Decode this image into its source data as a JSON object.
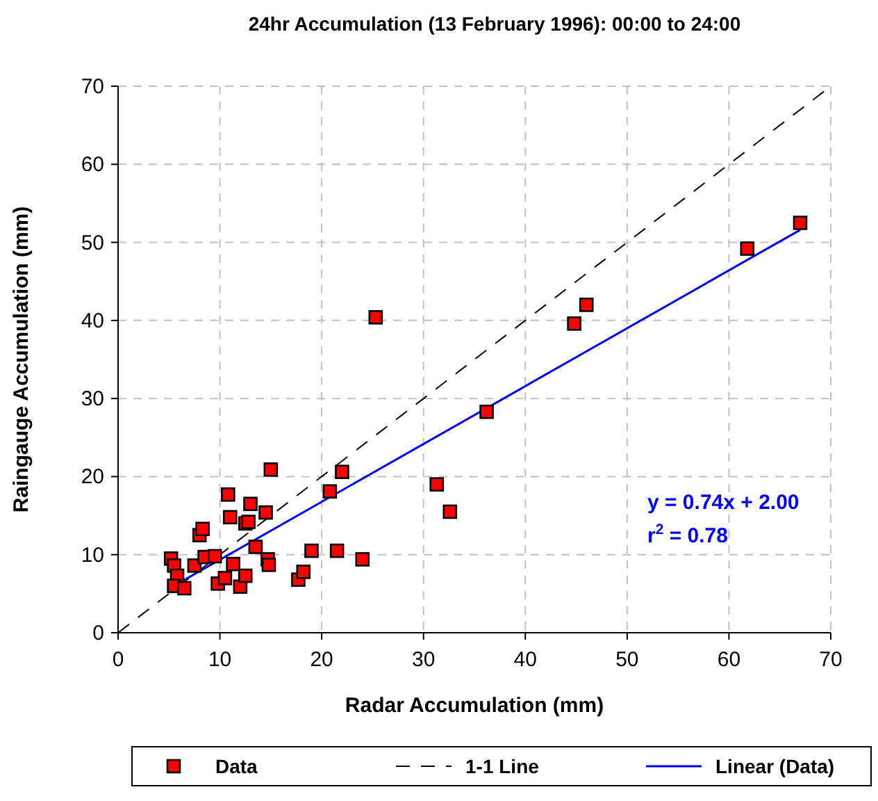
{
  "chart_data": {
    "type": "scatter",
    "title": "24hr Accumulation (13 February 1996): 00:00 to 24:00",
    "xlabel": "Radar Accumulation (mm)",
    "ylabel": "Raingauge Accumulation (mm)",
    "xlim": [
      0,
      70
    ],
    "ylim": [
      0,
      70
    ],
    "xticks": [
      0,
      10,
      20,
      30,
      40,
      50,
      60,
      70
    ],
    "yticks": [
      0,
      10,
      20,
      30,
      40,
      50,
      60,
      70
    ],
    "grid": true,
    "legend": "bottom",
    "annotations": [
      "y = 0.74x + 2.00",
      "r$^{2}$ = 0.78"
    ],
    "series": [
      {
        "name": "Data",
        "marker": "square",
        "color": "#ff0000",
        "x": [
          5.2,
          5.5,
          5.8,
          5.5,
          6.5,
          7.5,
          8,
          8.3,
          8.5,
          9.5,
          9.8,
          10.5,
          10.8,
          11,
          11.3,
          12,
          12.5,
          12.5,
          12.8,
          13,
          13.5,
          14.5,
          14.7,
          14.8,
          15,
          17.7,
          18.2,
          19,
          20.8,
          21.5,
          22,
          24,
          25.3,
          31.3,
          32.6,
          36.2,
          44.8,
          46,
          61.8,
          67
        ],
        "values": [
          9.5,
          8.6,
          7.3,
          6,
          5.7,
          8.6,
          12.5,
          13.3,
          9.7,
          9.8,
          6.3,
          7,
          17.7,
          14.8,
          8.8,
          5.9,
          7.3,
          14,
          14.2,
          16.5,
          11,
          15.4,
          9.4,
          8.7,
          20.9,
          6.8,
          7.8,
          10.5,
          18.1,
          10.5,
          20.6,
          9.4,
          40.4,
          19,
          15.5,
          28.3,
          39.6,
          42,
          49.2,
          52.5
        ]
      },
      {
        "name": "1-1 Line",
        "type": "line",
        "line_style": "dashed",
        "color": "#000000",
        "x": [
          0,
          70
        ],
        "values": [
          0,
          70
        ]
      },
      {
        "name": "Linear (Data)",
        "type": "line",
        "line_style": "solid",
        "color": "#0000ff",
        "x": [
          5.2,
          67
        ],
        "values": [
          5.8,
          51.6
        ]
      }
    ]
  }
}
